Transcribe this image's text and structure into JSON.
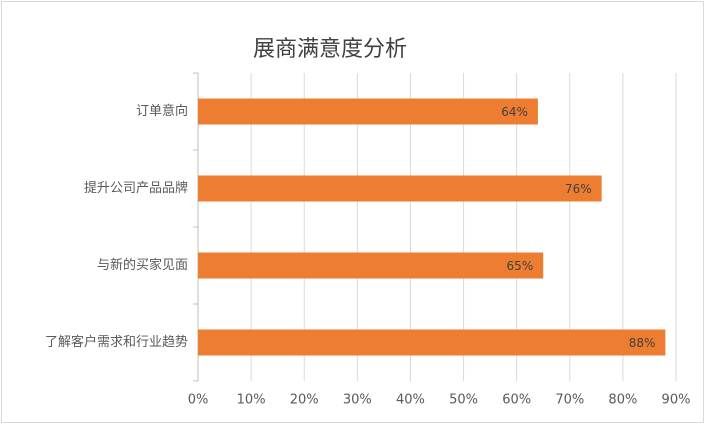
{
  "chart_data": {
    "type": "bar",
    "orientation": "horizontal",
    "title": "展商满意度分析",
    "categories": [
      "订单意向",
      "提升公司产品品牌",
      "与新的买家见面",
      "了解客户需求和行业趋势"
    ],
    "values": [
      64,
      76,
      65,
      88
    ],
    "value_labels": [
      "64%",
      "76%",
      "65%",
      "88%"
    ],
    "color": "#ed7d31",
    "xlim": [
      0,
      90
    ],
    "xticks": [
      {
        "value": 0,
        "label": "0%"
      },
      {
        "value": 10,
        "label": "10%"
      },
      {
        "value": 20,
        "label": "20%"
      },
      {
        "value": 30,
        "label": "30%"
      },
      {
        "value": 40,
        "label": "40%"
      },
      {
        "value": 50,
        "label": "50%"
      },
      {
        "value": 60,
        "label": "60%"
      },
      {
        "value": 70,
        "label": "70%"
      },
      {
        "value": 80,
        "label": "80%"
      },
      {
        "value": 90,
        "label": "90%"
      }
    ],
    "grid": true
  }
}
